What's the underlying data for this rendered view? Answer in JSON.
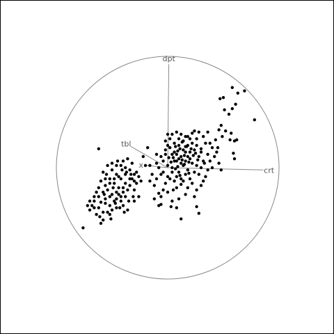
{
  "chart_data": {
    "type": "scatter",
    "projection": "grand-tour-biplot",
    "title": "",
    "xlabel": "",
    "ylabel": "",
    "xlim": [
      -1,
      1
    ],
    "ylim": [
      -1,
      1
    ],
    "grid": false,
    "legend": "none",
    "colors": {
      "points": "#000000",
      "circle": "#888888",
      "axes": "#888888",
      "labels": "#555555",
      "frame": "#000000"
    },
    "axes": [
      {
        "label": "dpt",
        "x": 0.01,
        "y": 0.93
      },
      {
        "label": "tbl",
        "x": -0.33,
        "y": 0.19
      },
      {
        "label": "x",
        "x": -0.19,
        "y": 0.02
      },
      {
        "label": "crt",
        "x": 0.86,
        "y": -0.02
      }
    ],
    "points": [
      [
        -0.76,
        -0.54
      ],
      [
        -0.6,
        -0.5
      ],
      [
        -0.58,
        -0.47
      ],
      [
        -0.62,
        -0.36
      ],
      [
        -0.68,
        -0.34
      ],
      [
        -0.7,
        -0.38
      ],
      [
        -0.66,
        -0.3
      ],
      [
        -0.6,
        -0.31
      ],
      [
        -0.56,
        -0.28
      ],
      [
        -0.52,
        -0.34
      ],
      [
        -0.64,
        -0.22
      ],
      [
        -0.58,
        -0.22
      ],
      [
        -0.54,
        -0.2
      ],
      [
        -0.5,
        -0.24
      ],
      [
        -0.46,
        -0.28
      ],
      [
        -0.42,
        -0.3
      ],
      [
        -0.38,
        -0.26
      ],
      [
        -0.35,
        -0.3
      ],
      [
        -0.4,
        -0.22
      ],
      [
        -0.44,
        -0.18
      ],
      [
        -0.48,
        -0.14
      ],
      [
        -0.52,
        -0.1
      ],
      [
        -0.56,
        -0.16
      ],
      [
        -0.6,
        -0.12
      ],
      [
        -0.55,
        -0.06
      ],
      [
        -0.5,
        -0.02
      ],
      [
        -0.46,
        -0.06
      ],
      [
        -0.42,
        -0.1
      ],
      [
        -0.38,
        -0.14
      ],
      [
        -0.34,
        -0.16
      ],
      [
        -0.32,
        -0.1
      ],
      [
        -0.3,
        -0.06
      ],
      [
        -0.34,
        -0.02
      ],
      [
        -0.38,
        0.0
      ],
      [
        -0.42,
        0.02
      ],
      [
        -0.46,
        0.02
      ],
      [
        -0.5,
        0.04
      ],
      [
        -0.54,
        0.02
      ],
      [
        -0.28,
        -0.14
      ],
      [
        -0.3,
        -0.2
      ],
      [
        -0.36,
        -0.2
      ],
      [
        -0.4,
        -0.18
      ],
      [
        -0.44,
        -0.24
      ],
      [
        -0.48,
        -0.3
      ],
      [
        -0.52,
        -0.26
      ],
      [
        -0.56,
        -0.32
      ],
      [
        -0.62,
        -0.26
      ],
      [
        -0.66,
        -0.36
      ],
      [
        -0.64,
        -0.42
      ],
      [
        -0.58,
        -0.4
      ],
      [
        -0.52,
        -0.42
      ],
      [
        -0.46,
        -0.36
      ],
      [
        -0.4,
        -0.34
      ],
      [
        -0.36,
        -0.38
      ],
      [
        -0.3,
        -0.3
      ],
      [
        -0.26,
        -0.26
      ],
      [
        -0.28,
        -0.04
      ],
      [
        -0.32,
        0.04
      ],
      [
        -0.36,
        0.08
      ],
      [
        -0.4,
        0.06
      ],
      [
        -0.44,
        -0.08
      ],
      [
        -0.48,
        -0.1
      ],
      [
        -0.52,
        -0.14
      ],
      [
        -0.56,
        -0.1
      ],
      [
        -0.58,
        -0.04
      ],
      [
        -0.54,
        -0.4
      ],
      [
        -0.5,
        -0.38
      ],
      [
        -0.46,
        -0.22
      ],
      [
        -0.42,
        -0.26
      ],
      [
        -0.38,
        -0.06
      ],
      [
        -0.34,
        -0.1
      ],
      [
        -0.3,
        -0.12
      ],
      [
        -0.26,
        -0.08
      ],
      [
        -0.24,
        -0.12
      ],
      [
        -0.62,
        -0.18
      ],
      [
        -0.66,
        -0.26
      ],
      [
        -0.7,
        -0.3
      ],
      [
        -0.72,
        -0.34
      ],
      [
        -0.45,
        0.06
      ],
      [
        -0.41,
        -0.02
      ],
      [
        -0.37,
        -0.04
      ],
      [
        -0.33,
        -0.06
      ],
      [
        -0.31,
        -0.26
      ],
      [
        -0.57,
        -0.24
      ],
      [
        -0.49,
        -0.18
      ],
      [
        -0.47,
        -0.32
      ],
      [
        -0.43,
        -0.36
      ],
      [
        -0.39,
        -0.4
      ],
      [
        -0.61,
        -0.44
      ],
      [
        -0.51,
        -0.46
      ],
      [
        -0.62,
        0.17
      ],
      [
        0.78,
        0.43
      ],
      [
        0.58,
        0.72
      ],
      [
        0.63,
        0.67
      ],
      [
        0.69,
        0.69
      ],
      [
        0.5,
        0.63
      ],
      [
        0.47,
        0.62
      ],
      [
        0.51,
        0.52
      ],
      [
        0.58,
        0.53
      ],
      [
        0.61,
        0.57
      ],
      [
        0.55,
        0.48
      ],
      [
        0.48,
        0.38
      ],
      [
        0.52,
        0.33
      ],
      [
        0.57,
        0.31
      ],
      [
        0.43,
        0.25
      ],
      [
        0.49,
        0.28
      ],
      [
        0.56,
        0.25
      ],
      [
        0.6,
        0.24
      ],
      [
        0.62,
        0.25
      ],
      [
        0.46,
        0.34
      ],
      [
        0.6,
        0.08
      ],
      [
        0.59,
        0.13
      ],
      [
        0.45,
        0.18
      ],
      [
        0.4,
        0.18
      ],
      [
        0.36,
        0.32
      ],
      [
        0.28,
        0.32
      ],
      [
        0.24,
        0.33
      ],
      [
        0.34,
        0.22
      ],
      [
        0.3,
        0.17
      ],
      [
        0.18,
        0.28
      ],
      [
        0.16,
        0.19
      ],
      [
        0.22,
        0.31
      ],
      [
        0.33,
        0.04
      ],
      [
        0.48,
        -0.02
      ],
      [
        0.12,
        -0.46
      ],
      [
        0.26,
        -0.35
      ],
      [
        0.28,
        -0.41
      ],
      [
        0.03,
        -0.35
      ],
      [
        -0.06,
        -0.33
      ],
      [
        0.16,
        -0.24
      ],
      [
        -0.08,
        -0.23
      ],
      [
        -0.18,
        0.18
      ],
      [
        -0.2,
        0.02
      ],
      [
        -0.1,
        0.04
      ],
      [
        -0.06,
        -0.06
      ],
      [
        0.08,
        -0.18
      ],
      [
        0.12,
        -0.15
      ],
      [
        -0.04,
        -0.2
      ],
      [
        -0.06,
        -0.26
      ],
      [
        0.0,
        -0.22
      ],
      [
        0.05,
        -0.2
      ],
      [
        0.02,
        -0.1
      ],
      [
        0.04,
        0.0
      ],
      [
        0.08,
        0.06
      ],
      [
        0.12,
        0.1
      ],
      [
        0.16,
        0.14
      ],
      [
        0.2,
        0.08
      ],
      [
        0.14,
        0.02
      ],
      [
        0.1,
        -0.04
      ],
      [
        0.18,
        -0.02
      ],
      [
        0.22,
        0.04
      ],
      [
        0.06,
        0.14
      ],
      [
        0.1,
        0.2
      ],
      [
        0.14,
        0.24
      ],
      [
        0.02,
        0.18
      ],
      [
        -0.02,
        0.12
      ],
      [
        -0.04,
        0.06
      ],
      [
        0.0,
        0.02
      ],
      [
        0.04,
        -0.04
      ],
      [
        0.08,
        -0.08
      ],
      [
        0.12,
        -0.1
      ],
      [
        0.16,
        -0.06
      ],
      [
        0.2,
        -0.1
      ],
      [
        0.24,
        -0.04
      ],
      [
        0.26,
        0.02
      ],
      [
        0.28,
        0.1
      ],
      [
        0.24,
        0.16
      ],
      [
        0.18,
        0.2
      ],
      [
        0.1,
        0.26
      ],
      [
        0.06,
        0.22
      ],
      [
        0.02,
        0.26
      ],
      [
        0.0,
        0.2
      ],
      [
        -0.02,
        0.16
      ],
      [
        -0.06,
        0.1
      ],
      [
        -0.08,
        0.0
      ],
      [
        -0.04,
        -0.04
      ],
      [
        0.0,
        -0.08
      ],
      [
        0.06,
        -0.12
      ],
      [
        0.14,
        -0.12
      ],
      [
        0.22,
        -0.14
      ],
      [
        0.28,
        -0.06
      ],
      [
        0.3,
        0.0
      ],
      [
        0.32,
        0.06
      ],
      [
        0.3,
        0.14
      ],
      [
        0.26,
        0.2
      ],
      [
        0.2,
        0.26
      ],
      [
        0.12,
        0.3
      ],
      [
        0.04,
        0.3
      ],
      [
        -0.02,
        0.24
      ],
      [
        0.08,
        0.12
      ],
      [
        0.14,
        0.16
      ],
      [
        0.18,
        0.1
      ],
      [
        0.12,
        0.04
      ],
      [
        0.06,
        0.06
      ],
      [
        0.04,
        0.12
      ],
      [
        0.1,
        0.08
      ],
      [
        0.16,
        0.06
      ],
      [
        0.2,
        0.14
      ],
      [
        0.22,
        0.22
      ],
      [
        0.16,
        0.28
      ],
      [
        0.08,
        0.32
      ],
      [
        0.0,
        0.3
      ],
      [
        -0.1,
        -0.1
      ],
      [
        -0.12,
        -0.16
      ],
      [
        -0.14,
        -0.06
      ],
      [
        -0.16,
        0.02
      ],
      [
        -0.1,
        0.12
      ],
      [
        0.36,
        0.12
      ],
      [
        0.38,
        0.06
      ],
      [
        0.34,
        -0.08
      ],
      [
        0.3,
        -0.16
      ],
      [
        0.26,
        -0.2
      ],
      [
        0.18,
        -0.18
      ],
      [
        0.1,
        -0.28
      ],
      [
        0.04,
        -0.3
      ],
      [
        -0.02,
        -0.14
      ],
      [
        0.4,
        0.0
      ],
      [
        0.42,
        0.1
      ],
      [
        0.38,
        0.22
      ],
      [
        0.32,
        0.28
      ],
      [
        0.26,
        0.26
      ],
      [
        0.44,
        0.14
      ],
      [
        0.46,
        0.04
      ],
      [
        0.36,
        -0.02
      ],
      [
        0.32,
        -0.12
      ],
      [
        0.24,
        -0.26
      ],
      [
        0.08,
        -0.36
      ],
      [
        -0.08,
        -0.34
      ],
      [
        -0.12,
        -0.28
      ],
      [
        -0.16,
        -0.12
      ],
      [
        -0.22,
        0.1
      ],
      [
        0.13,
        0.07
      ],
      [
        0.09,
        0.15
      ],
      [
        0.05,
        0.09
      ],
      [
        0.11,
        0.17
      ],
      [
        0.15,
        0.11
      ],
      [
        0.19,
        0.05
      ],
      [
        0.07,
        -0.01
      ],
      [
        0.03,
        0.05
      ],
      [
        0.17,
        0.19
      ],
      [
        0.13,
        0.23
      ],
      [
        0.21,
        0.17
      ],
      [
        0.23,
        0.11
      ],
      [
        0.01,
        0.09
      ],
      [
        0.07,
        0.19
      ],
      [
        0.15,
        0.03
      ],
      [
        0.19,
        -0.05
      ],
      [
        0.11,
        -0.07
      ],
      [
        0.27,
        0.07
      ],
      [
        0.25,
        0.13
      ],
      [
        0.09,
        0.01
      ]
    ]
  }
}
